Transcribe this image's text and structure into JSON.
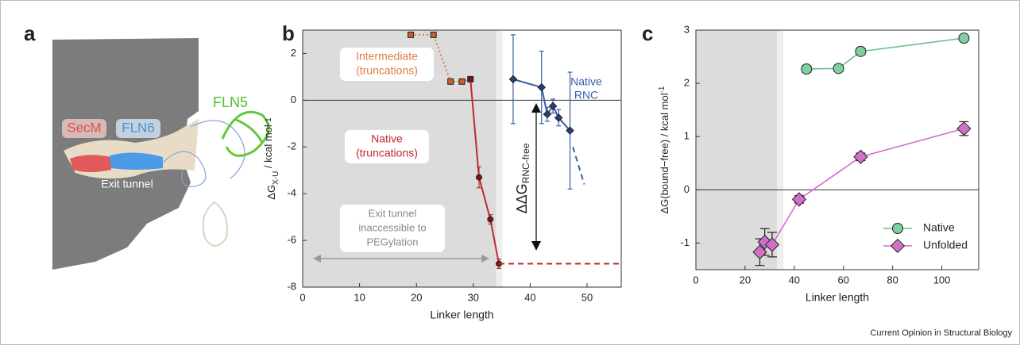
{
  "panel_labels": [
    "a",
    "b",
    "c"
  ],
  "panel_a": {
    "labels": [
      "SecM",
      "FLN6",
      "FLN5",
      "Exit tunnel"
    ]
  },
  "chart_data": [
    {
      "type": "line",
      "x_label": "Linker length",
      "y_label": {
        "text": "ΔG",
        "sub": "X-U",
        "unit": " / kcal mol",
        "sup": "-1"
      },
      "xlim": [
        0,
        56
      ],
      "xticks": [
        0,
        10,
        20,
        30,
        40,
        50
      ],
      "ylim": [
        -8,
        3
      ],
      "yticks": [
        -8,
        -6,
        -4,
        -2,
        0,
        2
      ],
      "shade": [
        0,
        34
      ],
      "zero_line": true,
      "series": [
        {
          "color": "#e07a45",
          "marker": "square",
          "marker_color": "#c8602e",
          "line_style": "dotted",
          "x": [
            19,
            23,
            26,
            28,
            29.5
          ],
          "values": [
            2.8,
            2.8,
            0.8,
            0.8,
            0.9
          ],
          "errors": [
            0.05,
            0.05,
            0.1,
            0.1,
            0.1
          ]
        },
        {
          "color": "#c0282d",
          "marker": "circle",
          "marker_color": "#7a1518",
          "line_style": "solid",
          "x": [
            29.5,
            31,
            33,
            34.5
          ],
          "values": [
            0.9,
            -3.3,
            -5.1,
            -7.0
          ],
          "errors": [
            0.1,
            0.45,
            0.2,
            0.2
          ]
        },
        {
          "color": "#c0282d",
          "marker": "none",
          "line_style": "dashed",
          "x": [
            34.5,
            56
          ],
          "values": [
            -7,
            -7
          ]
        },
        {
          "color": "#3a5ea8",
          "marker": "diamond",
          "marker_color": "#2a3f78",
          "line_style": "solid",
          "x": [
            37,
            42,
            43,
            44,
            45,
            47
          ],
          "values": [
            0.9,
            0.55,
            -0.6,
            -0.25,
            -0.75,
            -1.3
          ],
          "errors": [
            1.9,
            1.55,
            0.3,
            0.3,
            0.35,
            2.5
          ]
        },
        {
          "color": "#3a5ea8",
          "marker": "none",
          "line_style": "dashed",
          "x": [
            47.5,
            49.5
          ],
          "values": [
            -2.0,
            -3.6
          ]
        }
      ],
      "annotations": {
        "intermediate": [
          "Intermediate",
          "(truncations)"
        ],
        "native_truncations": [
          "Native",
          "(truncations)"
        ],
        "native_rnc": [
          "Native",
          "RNC"
        ],
        "ddg": {
          "text": "ΔΔG",
          "sub": "RNC-free"
        },
        "exit_tunnel": [
          "Exit tunnel",
          "inaccessible to",
          "PEGylation"
        ]
      }
    },
    {
      "type": "line",
      "x_label": "Linker length",
      "y_label": {
        "text": "ΔG(bound−free) / kcal mol",
        "sup": "-1"
      },
      "xlim": [
        0,
        115
      ],
      "xticks": [
        0,
        20,
        40,
        60,
        80,
        100
      ],
      "ylim": [
        -1.5,
        3
      ],
      "yticks": [
        -1,
        0,
        1,
        2,
        3
      ],
      "shade": [
        0,
        33
      ],
      "zero_line": true,
      "legend": "lower right",
      "series": [
        {
          "name": "Native",
          "color": "#6cc08b",
          "marker": "circle",
          "marker_color": "#7fd0a0",
          "error_color": "#222222",
          "line_style": "solid",
          "x": [
            45,
            58,
            67,
            109
          ],
          "values": [
            2.27,
            2.28,
            2.6,
            2.85
          ],
          "errors": [
            0.06,
            0.05,
            0.06,
            0.05
          ]
        },
        {
          "name": "Unfolded",
          "color": "#d26ccf",
          "marker": "diamond",
          "marker_color": "#d070c8",
          "error_color": "#222222",
          "line_style": "solid",
          "x": [
            26,
            28,
            31,
            42,
            67,
            109
          ],
          "values": [
            -1.17,
            -0.98,
            -1.03,
            -0.18,
            0.62,
            1.15
          ],
          "errors": [
            0.25,
            0.25,
            0.23,
            0.07,
            0.07,
            0.13
          ]
        }
      ]
    }
  ],
  "credit": "Current Opinion in Structural Biology"
}
